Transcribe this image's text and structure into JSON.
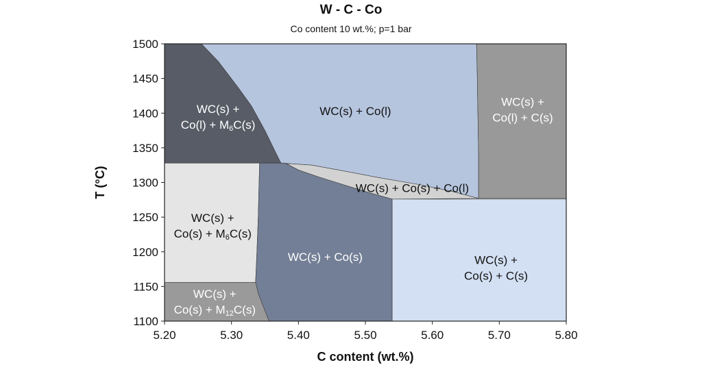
{
  "chart_data": {
    "type": "phase-diagram",
    "title": "W - C - Co",
    "subtitle": "Co content 10 wt.%; p=1 bar",
    "xlabel": "C content (wt.%)",
    "ylabel": "T (°C)",
    "xlim": [
      5.2,
      5.8
    ],
    "ylim": [
      1100,
      1500
    ],
    "xticks": [
      "5.20",
      "5.30",
      "5.40",
      "5.50",
      "5.60",
      "5.70",
      "5.80"
    ],
    "yticks": [
      "1100",
      "1150",
      "1200",
      "1250",
      "1300",
      "1350",
      "1400",
      "1450",
      "1500"
    ],
    "regions": [
      {
        "id": "r1",
        "label_lines": [
          [
            "WC(s) +"
          ],
          [
            "Co(l) + M",
            {
              "sub": "6"
            },
            "C(s)"
          ]
        ],
        "color": "#585c66",
        "text": "light",
        "label_at": [
          5.28,
          1395
        ],
        "polygon": [
          [
            5.2,
            1500
          ],
          [
            5.255,
            1500
          ],
          [
            5.28,
            1475
          ],
          [
            5.31,
            1437
          ],
          [
            5.33,
            1410
          ],
          [
            5.35,
            1375
          ],
          [
            5.365,
            1345
          ],
          [
            5.374,
            1328
          ],
          [
            5.342,
            1328
          ],
          [
            5.2,
            1328
          ]
        ]
      },
      {
        "id": "r2",
        "label_lines": [
          [
            "WC(s) + Co(l)"
          ]
        ],
        "color": "#b6c5de",
        "text": "dark",
        "label_at": [
          5.485,
          1403
        ],
        "polygon": [
          [
            5.255,
            1500
          ],
          [
            5.666,
            1500
          ],
          [
            5.667,
            1460
          ],
          [
            5.668,
            1400
          ],
          [
            5.669,
            1340
          ],
          [
            5.669,
            1277
          ],
          [
            5.63,
            1287
          ],
          [
            5.58,
            1297
          ],
          [
            5.52,
            1307
          ],
          [
            5.46,
            1318
          ],
          [
            5.42,
            1325
          ],
          [
            5.374,
            1328
          ],
          [
            5.365,
            1345
          ],
          [
            5.35,
            1375
          ],
          [
            5.33,
            1410
          ],
          [
            5.31,
            1437
          ],
          [
            5.28,
            1475
          ]
        ]
      },
      {
        "id": "r3",
        "label_lines": [
          [
            "WC(s) +"
          ],
          [
            "Co(l) + C(s)"
          ]
        ],
        "color": "#999999",
        "text": "light",
        "label_at": [
          5.735,
          1405
        ],
        "polygon": [
          [
            5.666,
            1500
          ],
          [
            5.8,
            1500
          ],
          [
            5.8,
            1277
          ],
          [
            5.669,
            1277
          ],
          [
            5.669,
            1340
          ],
          [
            5.668,
            1400
          ],
          [
            5.667,
            1460
          ]
        ]
      },
      {
        "id": "r4",
        "label_lines": [
          [
            "WC(s) + Co(s) + Co(l)"
          ]
        ],
        "color": "#d2d2d2",
        "text": "dark",
        "label_at": [
          5.57,
          1292
        ],
        "polygon": [
          [
            5.374,
            1328
          ],
          [
            5.42,
            1325
          ],
          [
            5.46,
            1318
          ],
          [
            5.52,
            1307
          ],
          [
            5.58,
            1297
          ],
          [
            5.63,
            1287
          ],
          [
            5.669,
            1277
          ],
          [
            5.54,
            1276
          ],
          [
            5.51,
            1284
          ],
          [
            5.47,
            1296
          ],
          [
            5.43,
            1308
          ],
          [
            5.4,
            1318
          ],
          [
            5.38,
            1328
          ]
        ]
      },
      {
        "id": "r5",
        "label_lines": [
          [
            "WC(s) +"
          ],
          [
            "Co(s) + M",
            {
              "sub": "6"
            },
            "C(s)"
          ]
        ],
        "color": "#e5e5e5",
        "text": "dark",
        "label_at": [
          5.272,
          1238
        ],
        "polygon": [
          [
            5.2,
            1328
          ],
          [
            5.342,
            1328
          ],
          [
            5.341,
            1290
          ],
          [
            5.34,
            1250
          ],
          [
            5.338,
            1200
          ],
          [
            5.336,
            1156
          ],
          [
            5.2,
            1156
          ]
        ]
      },
      {
        "id": "r6",
        "label_lines": [
          [
            "WC(s) + Co(s)"
          ]
        ],
        "color": "#737f96",
        "text": "light",
        "label_at": [
          5.44,
          1193
        ],
        "polygon": [
          [
            5.342,
            1328
          ],
          [
            5.38,
            1328
          ],
          [
            5.4,
            1318
          ],
          [
            5.43,
            1308
          ],
          [
            5.47,
            1296
          ],
          [
            5.51,
            1284
          ],
          [
            5.54,
            1276
          ],
          [
            5.54,
            1100
          ],
          [
            5.356,
            1100
          ],
          [
            5.348,
            1120
          ],
          [
            5.34,
            1140
          ],
          [
            5.336,
            1156
          ],
          [
            5.338,
            1200
          ],
          [
            5.34,
            1250
          ],
          [
            5.341,
            1290
          ]
        ]
      },
      {
        "id": "r7",
        "label_lines": [
          [
            "WC(s) +"
          ],
          [
            "Co(s) + C(s)"
          ]
        ],
        "color": "#d3e0f3",
        "text": "dark",
        "label_at": [
          5.695,
          1177
        ],
        "polygon": [
          [
            5.54,
            1276
          ],
          [
            5.8,
            1276
          ],
          [
            5.8,
            1100
          ],
          [
            5.54,
            1100
          ]
        ]
      },
      {
        "id": "r8",
        "label_lines": [
          [
            "WC(s) +"
          ],
          [
            "Co(s) + M",
            {
              "sub": "12"
            },
            "C(s)"
          ]
        ],
        "color": "#9a9a9a",
        "text": "light",
        "label_at": [
          5.275,
          1128
        ],
        "polygon": [
          [
            5.2,
            1156
          ],
          [
            5.336,
            1156
          ],
          [
            5.34,
            1140
          ],
          [
            5.348,
            1120
          ],
          [
            5.356,
            1100
          ],
          [
            5.2,
            1100
          ]
        ]
      }
    ]
  }
}
